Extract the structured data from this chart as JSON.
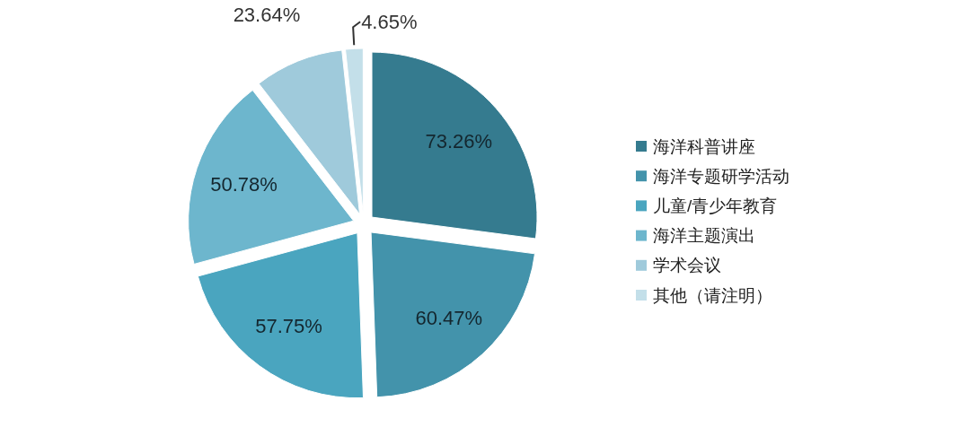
{
  "chart_data": {
    "type": "pie",
    "categories": [
      "海洋科普讲座",
      "海洋专题研学活动",
      "儿童/青少年教育",
      "海洋主题演出",
      "学术会议",
      "其他（请注明）"
    ],
    "values": [
      73.26,
      60.47,
      57.75,
      50.78,
      23.64,
      4.65
    ],
    "colors": [
      "#357b8f",
      "#4393ab",
      "#4aa5bf",
      "#6db6cd",
      "#9fcadb",
      "#c3dfe9"
    ],
    "value_labels": [
      "73.26%",
      "60.47%",
      "57.75%",
      "50.78%",
      "23.64%",
      "4.65%"
    ],
    "legend": "right"
  }
}
